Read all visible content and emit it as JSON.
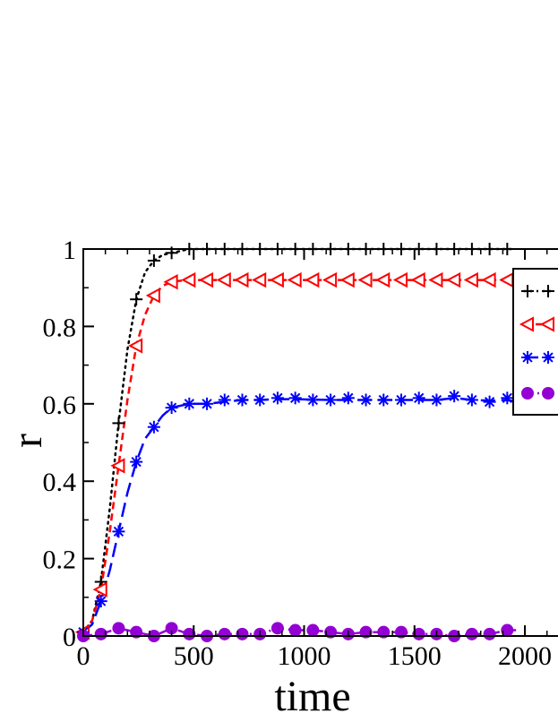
{
  "chart_data": {
    "type": "line",
    "title": "",
    "xlabel": "time",
    "ylabel": "r",
    "xlim": [
      0,
      2300
    ],
    "ylim": [
      0,
      1
    ],
    "xticks": [
      0,
      500,
      1000,
      1500,
      2000
    ],
    "yticks": [
      0,
      0.2,
      0.4,
      0.6,
      0.8,
      1
    ],
    "xtick_labels": [
      "0",
      "500",
      "1000",
      "1500",
      "2000"
    ],
    "ytick_labels": [
      "0",
      "0.2",
      "0.4",
      "0.6",
      "0.8",
      "1"
    ],
    "grid": false,
    "legend_position": "right (partially cut off)",
    "series": [
      {
        "color": "#000000",
        "marker": "plus",
        "line_style": "dotted",
        "x": [
          0,
          80,
          160,
          240,
          320,
          400,
          480,
          560,
          640,
          720,
          800,
          880,
          960,
          1040,
          1120,
          1200,
          1280,
          1360,
          1440,
          1520,
          1600,
          1680,
          1760,
          1840,
          1920
        ],
        "y": [
          0.01,
          0.14,
          0.55,
          0.87,
          0.97,
          0.99,
          1.0,
          1.0,
          1.0,
          1.0,
          1.0,
          1.0,
          1.0,
          1.0,
          1.0,
          1.0,
          1.0,
          1.0,
          1.0,
          1.0,
          1.0,
          1.0,
          1.0,
          1.0,
          1.0
        ],
        "curve_x": [
          0,
          40,
          80,
          120,
          160,
          200,
          240,
          280,
          320,
          360,
          400,
          440,
          480,
          560,
          640,
          720,
          800,
          960,
          1200,
          1500,
          1800,
          1950
        ],
        "curve_y": [
          0.01,
          0.04,
          0.14,
          0.33,
          0.55,
          0.74,
          0.87,
          0.94,
          0.97,
          0.985,
          0.99,
          0.995,
          1.0,
          1.0,
          1.0,
          1.0,
          1.0,
          1.0,
          1.0,
          1.0,
          1.0,
          1.0
        ]
      },
      {
        "color": "#ff0000",
        "marker": "triangle-left",
        "line_style": "dashed",
        "x": [
          0,
          80,
          160,
          240,
          320,
          400,
          480,
          560,
          640,
          720,
          800,
          880,
          960,
          1040,
          1120,
          1200,
          1280,
          1360,
          1440,
          1520,
          1600,
          1680,
          1760,
          1840,
          1920
        ],
        "y": [
          0.01,
          0.12,
          0.44,
          0.75,
          0.88,
          0.915,
          0.92,
          0.92,
          0.92,
          0.92,
          0.92,
          0.92,
          0.92,
          0.92,
          0.92,
          0.92,
          0.92,
          0.92,
          0.92,
          0.92,
          0.92,
          0.92,
          0.92,
          0.92,
          0.92
        ],
        "curve_x": [
          0,
          40,
          80,
          120,
          160,
          200,
          240,
          280,
          320,
          360,
          400,
          440,
          480,
          560,
          640,
          800,
          1000,
          1200,
          1500,
          1800,
          1950
        ],
        "curve_y": [
          0.01,
          0.04,
          0.12,
          0.27,
          0.44,
          0.61,
          0.75,
          0.83,
          0.88,
          0.905,
          0.915,
          0.918,
          0.92,
          0.92,
          0.92,
          0.92,
          0.92,
          0.92,
          0.92,
          0.92,
          0.92
        ]
      },
      {
        "color": "#0000ff",
        "marker": "asterisk",
        "line_style": "long-dashed",
        "x": [
          0,
          80,
          160,
          240,
          320,
          400,
          480,
          560,
          640,
          720,
          800,
          880,
          960,
          1040,
          1120,
          1200,
          1280,
          1360,
          1440,
          1520,
          1600,
          1680,
          1760,
          1840,
          1920
        ],
        "y": [
          0.01,
          0.09,
          0.27,
          0.45,
          0.54,
          0.59,
          0.6,
          0.6,
          0.61,
          0.61,
          0.61,
          0.615,
          0.615,
          0.61,
          0.61,
          0.615,
          0.61,
          0.61,
          0.61,
          0.615,
          0.61,
          0.62,
          0.61,
          0.605,
          0.615
        ],
        "curve_x": [
          0,
          40,
          80,
          120,
          160,
          200,
          240,
          280,
          320,
          360,
          400,
          480,
          560,
          640,
          720,
          800,
          880,
          960,
          1120,
          1280,
          1440,
          1600,
          1680,
          1760,
          1840,
          1920,
          1960
        ],
        "curve_y": [
          0.01,
          0.03,
          0.09,
          0.17,
          0.27,
          0.37,
          0.45,
          0.51,
          0.54,
          0.57,
          0.59,
          0.6,
          0.6,
          0.605,
          0.61,
          0.61,
          0.612,
          0.612,
          0.61,
          0.61,
          0.61,
          0.61,
          0.615,
          0.61,
          0.608,
          0.61,
          0.605
        ]
      },
      {
        "color": "#9400d3",
        "marker": "circle",
        "line_style": "dash-dot",
        "x": [
          0,
          80,
          160,
          240,
          320,
          400,
          480,
          560,
          640,
          720,
          800,
          880,
          960,
          1040,
          1120,
          1200,
          1280,
          1360,
          1440,
          1520,
          1600,
          1680,
          1760,
          1840,
          1920
        ],
        "y": [
          0.0,
          0.005,
          0.02,
          0.01,
          0.0,
          0.02,
          0.005,
          0.0,
          0.005,
          0.005,
          0.005,
          0.02,
          0.015,
          0.015,
          0.01,
          0.005,
          0.01,
          0.01,
          0.01,
          0.005,
          0.005,
          0.0,
          0.005,
          0.005,
          0.015
        ],
        "curve_x": [
          0,
          80,
          160,
          240,
          320,
          400,
          480,
          560,
          640,
          720,
          800,
          880,
          960,
          1040,
          1120,
          1200,
          1280,
          1360,
          1440,
          1520,
          1600,
          1680,
          1760,
          1840,
          1920,
          1960
        ],
        "curve_y": [
          0.0,
          0.005,
          0.02,
          0.01,
          0.0,
          0.02,
          0.005,
          0.0,
          0.005,
          0.005,
          0.005,
          0.02,
          0.015,
          0.015,
          0.01,
          0.005,
          0.01,
          0.01,
          0.01,
          0.005,
          0.005,
          0.0,
          0.005,
          0.005,
          0.015,
          0.015
        ]
      }
    ]
  }
}
